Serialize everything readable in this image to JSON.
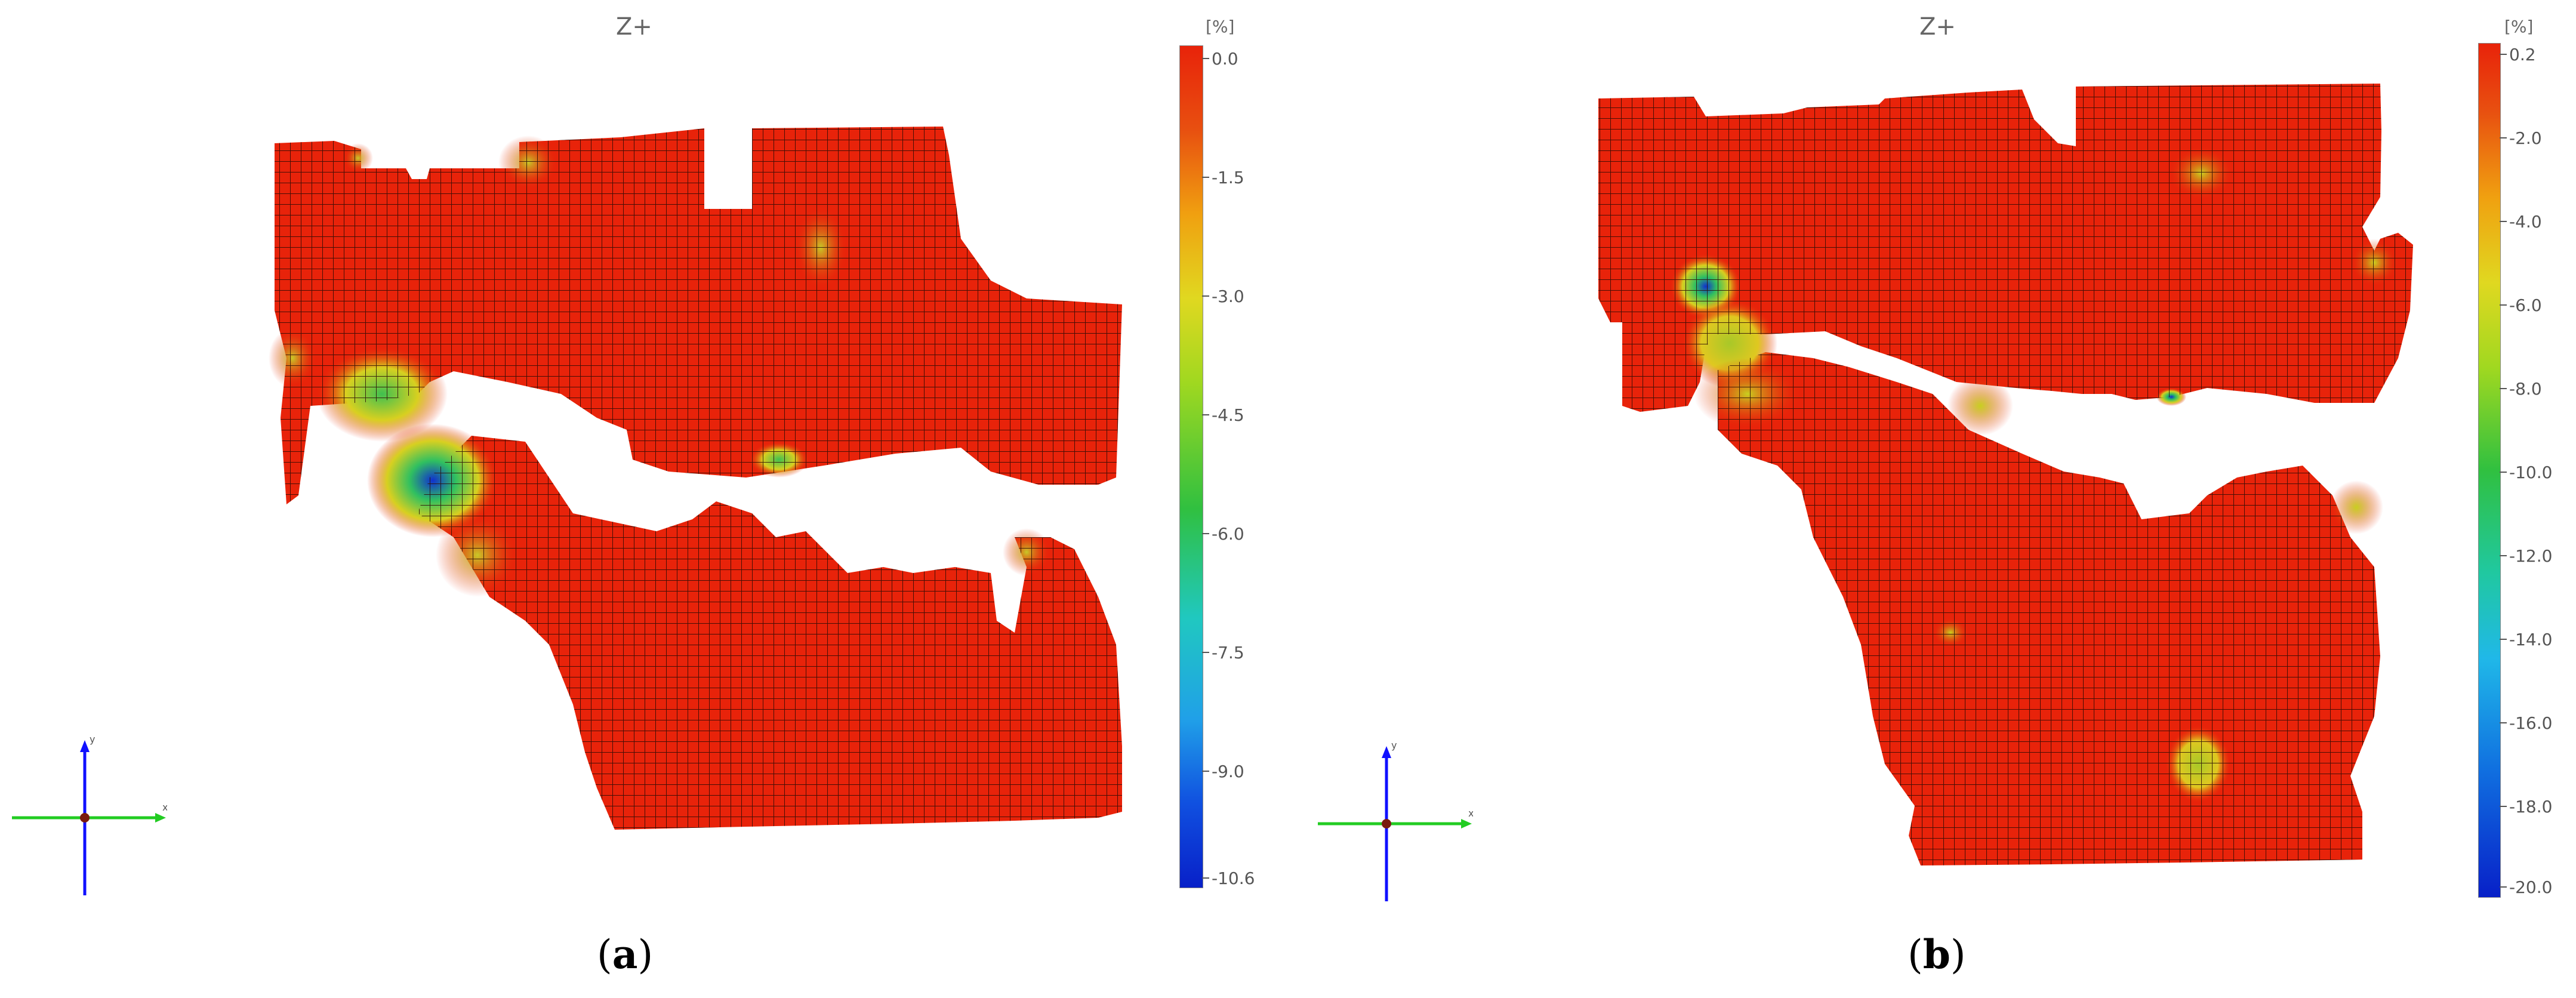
{
  "panels": [
    {
      "id": "a",
      "view_title": "Z+",
      "unit": "[%]",
      "ticks": [
        "0.0",
        "-1.5",
        "-3.0",
        "-4.5",
        "-6.0",
        "-7.5",
        "-9.0",
        "-10.6"
      ],
      "label_open": "(",
      "label_letter": "a",
      "label_close": ")"
    },
    {
      "id": "b",
      "view_title": "Z+",
      "unit": "[%]",
      "ticks": [
        "0.2",
        "-2.0",
        "-4.0",
        "-6.0",
        "-8.0",
        "-10.0",
        "-12.0",
        "-14.0",
        "-16.0",
        "-18.0",
        "-20.0"
      ],
      "label_open": "(",
      "label_letter": "b",
      "label_close": ")"
    }
  ],
  "colors": {
    "mesh_red": "#e8230a",
    "grid_line": "#2a0a05",
    "hot_yellow": "#e0d020",
    "hot_green": "#3cc040",
    "hot_blue": "#1030d0",
    "axis_green": "#22cc22",
    "axis_blue": "#1010ff"
  }
}
